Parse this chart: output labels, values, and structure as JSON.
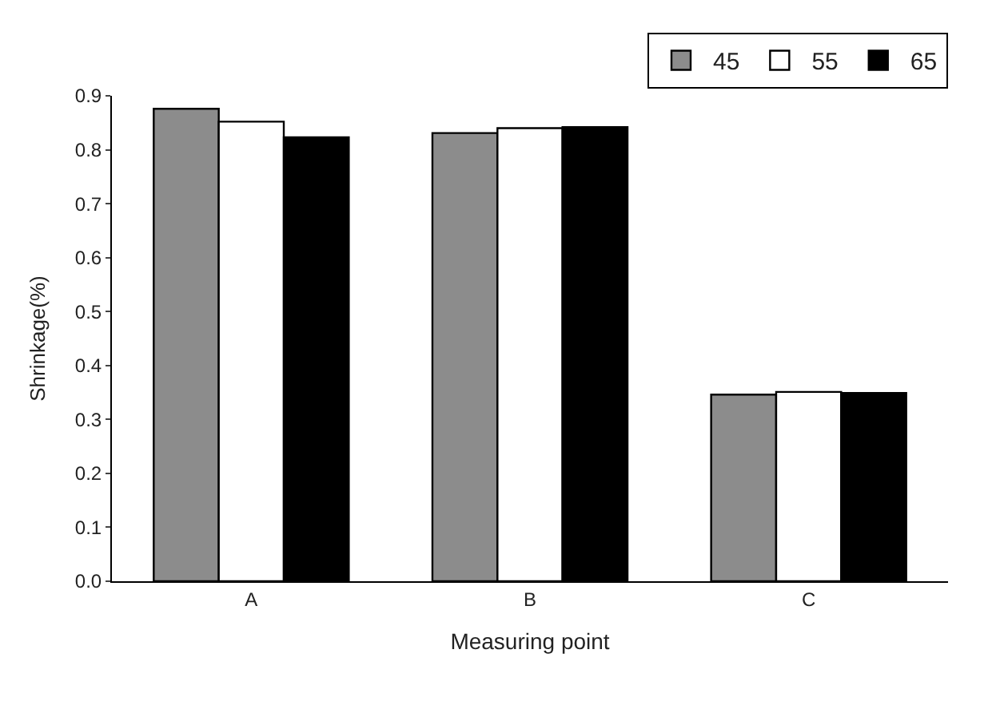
{
  "chart_data": {
    "type": "bar",
    "xlabel": "Measuring point",
    "ylabel": "Shrinkage(%)",
    "categories": [
      "A",
      "B",
      "C"
    ],
    "series": [
      {
        "name": "45",
        "color": "#8c8c8c",
        "values": [
          0.876,
          0.831,
          0.346
        ]
      },
      {
        "name": "55",
        "color": "#ffffff",
        "values": [
          0.852,
          0.84,
          0.351
        ]
      },
      {
        "name": "65",
        "color": "#000000",
        "values": [
          0.823,
          0.842,
          0.349
        ]
      }
    ],
    "ylim": [
      0,
      0.9
    ],
    "yticks": [
      {
        "value": 0,
        "label": "0.0"
      },
      0.1,
      0.2,
      0.3,
      0.4,
      0.5,
      0.6,
      0.7,
      0.8,
      0.9
    ],
    "grid": false,
    "legend": "top right"
  }
}
